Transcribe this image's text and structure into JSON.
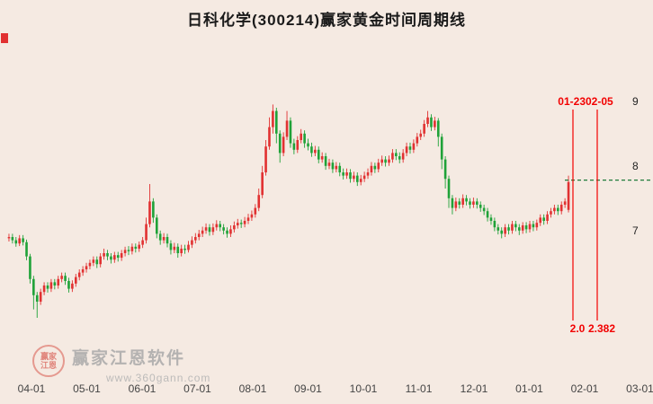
{
  "window": {
    "title": "日科化学(300214)赢家黄金时间周期线"
  },
  "watermark": {
    "brand": "赢家江恩软件",
    "url": "www.360gann.com",
    "seal_line1": "赢家",
    "seal_line2": "江恩"
  },
  "chart_data": {
    "type": "candlestick",
    "title": "日科化学(300214)赢家黄金时间周期线",
    "up_color": "#e13131",
    "down_color": "#1fa238",
    "grid": false,
    "y_ticks": [
      9,
      8,
      7
    ],
    "y_range": [
      5.4,
      9.4
    ],
    "x_ticks": [
      "04-01",
      "05-01",
      "06-01",
      "07-01",
      "08-01",
      "09-01",
      "10-01",
      "11-01",
      "12-01",
      "01-01",
      "02-01",
      "03-01"
    ],
    "hline": {
      "value": 7.78,
      "color": "#1f7a3a",
      "style": "dashed"
    },
    "vlines": [
      {
        "x": 637,
        "top_label": "01-23",
        "bottom_label": "2.0",
        "color": "#f20000"
      },
      {
        "x": 664,
        "top_label": "02-05",
        "bottom_label": "2.382",
        "color": "#f20000"
      }
    ],
    "candles": [
      [
        6.88,
        6.95,
        6.83,
        6.9
      ],
      [
        6.9,
        6.95,
        6.8,
        6.85
      ],
      [
        6.85,
        6.9,
        6.75,
        6.8
      ],
      [
        6.8,
        6.93,
        6.76,
        6.88
      ],
      [
        6.88,
        6.93,
        6.77,
        6.82
      ],
      [
        6.82,
        6.86,
        6.54,
        6.6
      ],
      [
        6.6,
        6.64,
        6.18,
        6.25
      ],
      [
        6.25,
        6.3,
        5.78,
        6.0
      ],
      [
        6.0,
        6.05,
        5.65,
        5.9
      ],
      [
        5.9,
        6.1,
        5.85,
        6.05
      ],
      [
        6.05,
        6.2,
        6.0,
        6.15
      ],
      [
        6.15,
        6.2,
        6.04,
        6.1
      ],
      [
        6.1,
        6.25,
        6.05,
        6.2
      ],
      [
        6.2,
        6.25,
        6.09,
        6.15
      ],
      [
        6.15,
        6.3,
        6.1,
        6.25
      ],
      [
        6.25,
        6.35,
        6.2,
        6.3
      ],
      [
        6.3,
        6.35,
        6.16,
        6.22
      ],
      [
        6.22,
        6.27,
        6.04,
        6.1
      ],
      [
        6.1,
        6.23,
        6.05,
        6.18
      ],
      [
        6.18,
        6.33,
        6.13,
        6.28
      ],
      [
        6.28,
        6.4,
        6.23,
        6.35
      ],
      [
        6.35,
        6.45,
        6.3,
        6.4
      ],
      [
        6.4,
        6.5,
        6.35,
        6.45
      ],
      [
        6.45,
        6.55,
        6.4,
        6.5
      ],
      [
        6.5,
        6.6,
        6.45,
        6.55
      ],
      [
        6.55,
        6.6,
        6.42,
        6.48
      ],
      [
        6.48,
        6.65,
        6.43,
        6.6
      ],
      [
        6.6,
        6.72,
        6.55,
        6.65
      ],
      [
        6.65,
        6.7,
        6.54,
        6.6
      ],
      [
        6.6,
        6.65,
        6.49,
        6.55
      ],
      [
        6.55,
        6.67,
        6.5,
        6.62
      ],
      [
        6.62,
        6.67,
        6.52,
        6.58
      ],
      [
        6.58,
        6.7,
        6.53,
        6.65
      ],
      [
        6.65,
        6.75,
        6.6,
        6.7
      ],
      [
        6.7,
        6.76,
        6.62,
        6.68
      ],
      [
        6.68,
        6.8,
        6.63,
        6.75
      ],
      [
        6.75,
        6.8,
        6.66,
        6.72
      ],
      [
        6.72,
        6.83,
        6.67,
        6.78
      ],
      [
        6.78,
        6.9,
        6.73,
        6.85
      ],
      [
        6.85,
        7.2,
        6.8,
        7.1
      ],
      [
        7.1,
        7.72,
        7.05,
        7.45
      ],
      [
        7.45,
        7.5,
        7.12,
        7.2
      ],
      [
        7.2,
        7.25,
        6.88,
        6.95
      ],
      [
        6.95,
        7.0,
        6.78,
        6.85
      ],
      [
        6.85,
        6.96,
        6.8,
        6.9
      ],
      [
        6.9,
        6.95,
        6.74,
        6.8
      ],
      [
        6.8,
        6.85,
        6.63,
        6.7
      ],
      [
        6.7,
        6.81,
        6.65,
        6.75
      ],
      [
        6.75,
        6.8,
        6.58,
        6.65
      ],
      [
        6.65,
        6.78,
        6.6,
        6.72
      ],
      [
        6.72,
        6.78,
        6.64,
        6.7
      ],
      [
        6.7,
        6.84,
        6.66,
        6.78
      ],
      [
        6.78,
        6.91,
        6.73,
        6.85
      ],
      [
        6.85,
        6.96,
        6.8,
        6.9
      ],
      [
        6.9,
        7.01,
        6.85,
        6.95
      ],
      [
        6.95,
        7.06,
        6.9,
        7.0
      ],
      [
        7.0,
        7.11,
        6.95,
        7.05
      ],
      [
        7.05,
        7.1,
        6.92,
        6.98
      ],
      [
        6.98,
        7.11,
        6.93,
        7.05
      ],
      [
        7.05,
        7.16,
        7.0,
        7.1
      ],
      [
        7.1,
        7.15,
        6.99,
        7.05
      ],
      [
        7.05,
        7.1,
        6.94,
        7.0
      ],
      [
        7.0,
        7.05,
        6.89,
        6.95
      ],
      [
        6.95,
        7.08,
        6.9,
        7.02
      ],
      [
        7.02,
        7.14,
        6.97,
        7.08
      ],
      [
        7.08,
        7.18,
        7.03,
        7.12
      ],
      [
        7.12,
        7.17,
        7.04,
        7.1
      ],
      [
        7.1,
        7.21,
        7.05,
        7.15
      ],
      [
        7.15,
        7.26,
        7.1,
        7.2
      ],
      [
        7.2,
        7.31,
        7.15,
        7.25
      ],
      [
        7.25,
        7.41,
        7.2,
        7.35
      ],
      [
        7.35,
        7.65,
        7.3,
        7.55
      ],
      [
        7.55,
        8.0,
        7.5,
        7.9
      ],
      [
        7.9,
        8.4,
        7.85,
        8.3
      ],
      [
        8.3,
        8.75,
        8.25,
        8.6
      ],
      [
        8.6,
        8.95,
        8.5,
        8.85
      ],
      [
        8.85,
        8.9,
        8.35,
        8.5
      ],
      [
        8.5,
        8.55,
        8.05,
        8.2
      ],
      [
        8.2,
        8.52,
        8.15,
        8.45
      ],
      [
        8.45,
        8.85,
        8.4,
        8.7
      ],
      [
        8.7,
        8.75,
        8.28,
        8.35
      ],
      [
        8.35,
        8.42,
        8.18,
        8.25
      ],
      [
        8.25,
        8.46,
        8.2,
        8.4
      ],
      [
        8.4,
        8.57,
        8.35,
        8.5
      ],
      [
        8.5,
        8.55,
        8.28,
        8.35
      ],
      [
        8.35,
        8.42,
        8.24,
        8.3
      ],
      [
        8.3,
        8.36,
        8.14,
        8.2
      ],
      [
        8.2,
        8.31,
        8.15,
        8.25
      ],
      [
        8.25,
        8.3,
        8.04,
        8.1
      ],
      [
        8.1,
        8.21,
        8.05,
        8.15
      ],
      [
        8.15,
        8.2,
        7.94,
        8.0
      ],
      [
        8.0,
        8.11,
        7.95,
        8.05
      ],
      [
        8.05,
        8.1,
        7.89,
        7.95
      ],
      [
        7.95,
        8.06,
        7.9,
        8.0
      ],
      [
        8.0,
        8.05,
        7.84,
        7.9
      ],
      [
        7.9,
        7.96,
        7.79,
        7.85
      ],
      [
        7.85,
        7.96,
        7.8,
        7.9
      ],
      [
        7.9,
        7.95,
        7.74,
        7.8
      ],
      [
        7.8,
        7.91,
        7.75,
        7.85
      ],
      [
        7.85,
        7.9,
        7.69,
        7.75
      ],
      [
        7.75,
        7.86,
        7.7,
        7.8
      ],
      [
        7.8,
        7.91,
        7.75,
        7.85
      ],
      [
        7.85,
        7.96,
        7.8,
        7.9
      ],
      [
        7.9,
        8.06,
        7.85,
        8.0
      ],
      [
        8.0,
        8.05,
        7.89,
        7.95
      ],
      [
        7.95,
        8.11,
        7.9,
        8.05
      ],
      [
        8.05,
        8.16,
        8.0,
        8.1
      ],
      [
        8.1,
        8.15,
        7.99,
        8.05
      ],
      [
        8.05,
        8.16,
        8.0,
        8.1
      ],
      [
        8.1,
        8.26,
        8.05,
        8.2
      ],
      [
        8.2,
        8.26,
        8.09,
        8.15
      ],
      [
        8.15,
        8.21,
        8.04,
        8.1
      ],
      [
        8.1,
        8.26,
        8.05,
        8.2
      ],
      [
        8.2,
        8.36,
        8.15,
        8.3
      ],
      [
        8.3,
        8.36,
        8.19,
        8.25
      ],
      [
        8.25,
        8.41,
        8.2,
        8.35
      ],
      [
        8.35,
        8.51,
        8.3,
        8.45
      ],
      [
        8.45,
        8.56,
        8.4,
        8.5
      ],
      [
        8.5,
        8.71,
        8.45,
        8.65
      ],
      [
        8.65,
        8.85,
        8.6,
        8.75
      ],
      [
        8.75,
        8.8,
        8.54,
        8.6
      ],
      [
        8.6,
        8.76,
        8.55,
        8.7
      ],
      [
        8.7,
        8.74,
        8.3,
        8.45
      ],
      [
        8.45,
        8.5,
        7.95,
        8.1
      ],
      [
        8.1,
        8.15,
        7.65,
        7.8
      ],
      [
        7.8,
        7.85,
        7.35,
        7.5
      ],
      [
        7.5,
        7.55,
        7.25,
        7.35
      ],
      [
        7.35,
        7.51,
        7.3,
        7.45
      ],
      [
        7.45,
        7.5,
        7.34,
        7.4
      ],
      [
        7.4,
        7.56,
        7.35,
        7.5
      ],
      [
        7.5,
        7.55,
        7.39,
        7.45
      ],
      [
        7.45,
        7.5,
        7.34,
        7.4
      ],
      [
        7.4,
        7.51,
        7.35,
        7.45
      ],
      [
        7.45,
        7.5,
        7.34,
        7.4
      ],
      [
        7.4,
        7.45,
        7.29,
        7.35
      ],
      [
        7.35,
        7.4,
        7.24,
        7.3
      ],
      [
        7.3,
        7.35,
        7.14,
        7.2
      ],
      [
        7.2,
        7.25,
        7.09,
        7.15
      ],
      [
        7.15,
        7.2,
        6.99,
        7.05
      ],
      [
        7.05,
        7.1,
        6.94,
        7.0
      ],
      [
        7.0,
        7.05,
        6.88,
        6.95
      ],
      [
        6.95,
        7.1,
        6.9,
        7.05
      ],
      [
        7.05,
        7.1,
        6.94,
        7.0
      ],
      [
        7.0,
        7.15,
        6.95,
        7.1
      ],
      [
        7.1,
        7.15,
        6.99,
        7.05
      ],
      [
        7.05,
        7.1,
        6.93,
        7.0
      ],
      [
        7.0,
        7.13,
        6.95,
        7.08
      ],
      [
        7.08,
        7.13,
        6.96,
        7.02
      ],
      [
        7.02,
        7.15,
        6.97,
        7.1
      ],
      [
        7.1,
        7.15,
        6.99,
        7.05
      ],
      [
        7.05,
        7.17,
        7.0,
        7.12
      ],
      [
        7.12,
        7.25,
        7.07,
        7.2
      ],
      [
        7.2,
        7.25,
        7.09,
        7.15
      ],
      [
        7.15,
        7.3,
        7.1,
        7.25
      ],
      [
        7.25,
        7.35,
        7.2,
        7.3
      ],
      [
        7.3,
        7.4,
        7.25,
        7.35
      ],
      [
        7.35,
        7.4,
        7.24,
        7.3
      ],
      [
        7.3,
        7.45,
        7.25,
        7.4
      ],
      [
        7.4,
        7.5,
        7.35,
        7.45
      ],
      [
        7.32,
        7.85,
        7.28,
        7.75
      ]
    ]
  }
}
